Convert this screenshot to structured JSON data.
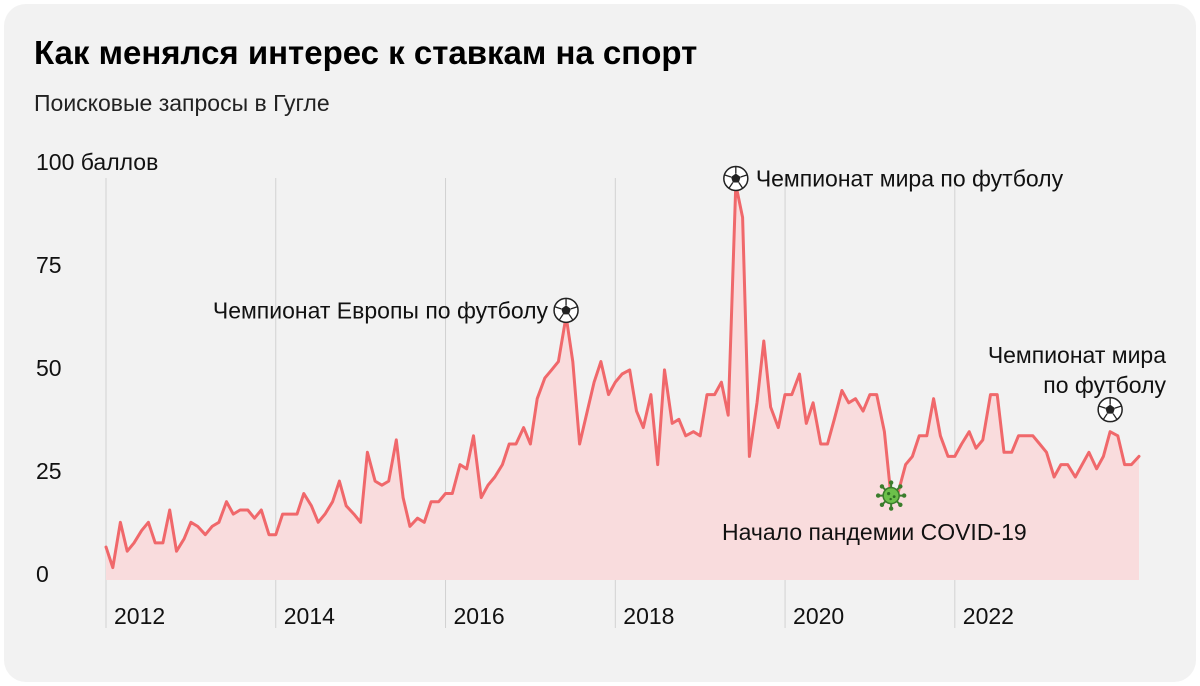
{
  "title": "Как менялся интерес к ставкам на спорт",
  "subtitle": "Поисковые запросы в Гугле",
  "chart_data": {
    "type": "area",
    "y_unit": "баллов",
    "ylim": [
      0,
      100
    ],
    "y_ticks": [
      {
        "value": 100,
        "label": "100 баллов"
      },
      {
        "value": 75,
        "label": "75"
      },
      {
        "value": 50,
        "label": "50"
      },
      {
        "value": 25,
        "label": "25"
      },
      {
        "value": 0,
        "label": "0"
      }
    ],
    "x_ticks": [
      {
        "value": 2012,
        "label": "2012"
      },
      {
        "value": 2014,
        "label": "2014"
      },
      {
        "value": 2016,
        "label": "2016"
      },
      {
        "value": 2018,
        "label": "2018"
      },
      {
        "value": 2020,
        "label": "2020"
      },
      {
        "value": 2022,
        "label": "2022"
      }
    ],
    "grid": "vertical lines at year ticks",
    "line_color": "#f0686b",
    "fill_color": "#f9dcdd",
    "series": [
      {
        "points": [
          [
            2012.0,
            8
          ],
          [
            2012.08,
            3
          ],
          [
            2012.17,
            14
          ],
          [
            2012.25,
            7
          ],
          [
            2012.33,
            9
          ],
          [
            2012.42,
            12
          ],
          [
            2012.5,
            14
          ],
          [
            2012.58,
            9
          ],
          [
            2012.67,
            9
          ],
          [
            2012.75,
            17
          ],
          [
            2012.83,
            7
          ],
          [
            2012.92,
            10
          ],
          [
            2013.0,
            14
          ],
          [
            2013.08,
            13
          ],
          [
            2013.17,
            11
          ],
          [
            2013.25,
            13
          ],
          [
            2013.33,
            14
          ],
          [
            2013.42,
            19
          ],
          [
            2013.5,
            16
          ],
          [
            2013.58,
            17
          ],
          [
            2013.67,
            17
          ],
          [
            2013.75,
            15
          ],
          [
            2013.83,
            17
          ],
          [
            2013.92,
            11
          ],
          [
            2014.0,
            11
          ],
          [
            2014.08,
            16
          ],
          [
            2014.17,
            16
          ],
          [
            2014.25,
            16
          ],
          [
            2014.33,
            21
          ],
          [
            2014.42,
            18
          ],
          [
            2014.5,
            14
          ],
          [
            2014.58,
            16
          ],
          [
            2014.67,
            19
          ],
          [
            2014.75,
            24
          ],
          [
            2014.83,
            18
          ],
          [
            2014.92,
            16
          ],
          [
            2015.0,
            14
          ],
          [
            2015.08,
            31
          ],
          [
            2015.17,
            24
          ],
          [
            2015.25,
            23
          ],
          [
            2015.33,
            24
          ],
          [
            2015.42,
            34
          ],
          [
            2015.5,
            20
          ],
          [
            2015.58,
            13
          ],
          [
            2015.67,
            15
          ],
          [
            2015.75,
            14
          ],
          [
            2015.83,
            19
          ],
          [
            2015.92,
            19
          ],
          [
            2016.0,
            21
          ],
          [
            2016.08,
            21
          ],
          [
            2016.17,
            28
          ],
          [
            2016.25,
            27
          ],
          [
            2016.33,
            35
          ],
          [
            2016.42,
            20
          ],
          [
            2016.5,
            23
          ],
          [
            2016.58,
            25
          ],
          [
            2016.67,
            28
          ],
          [
            2016.75,
            33
          ],
          [
            2016.83,
            33
          ],
          [
            2016.92,
            37
          ],
          [
            2017.0,
            33
          ],
          [
            2017.08,
            44
          ],
          [
            2017.17,
            49
          ],
          [
            2017.25,
            51
          ],
          [
            2017.33,
            53
          ],
          [
            2017.42,
            64
          ],
          [
            2017.5,
            53
          ],
          [
            2017.58,
            33
          ],
          [
            2017.67,
            41
          ],
          [
            2017.75,
            48
          ],
          [
            2017.83,
            53
          ],
          [
            2017.92,
            45
          ],
          [
            2018.0,
            48
          ],
          [
            2018.08,
            50
          ],
          [
            2018.17,
            51
          ],
          [
            2018.25,
            41
          ],
          [
            2018.33,
            37
          ],
          [
            2018.42,
            45
          ],
          [
            2018.5,
            28
          ],
          [
            2018.58,
            51
          ],
          [
            2018.67,
            38
          ],
          [
            2018.75,
            39
          ],
          [
            2018.83,
            35
          ],
          [
            2018.92,
            36
          ],
          [
            2019.0,
            35
          ],
          [
            2019.08,
            45
          ],
          [
            2019.17,
            45
          ],
          [
            2019.25,
            48
          ],
          [
            2019.33,
            40
          ],
          [
            2019.42,
            96
          ],
          [
            2019.5,
            88
          ],
          [
            2019.58,
            30
          ],
          [
            2019.67,
            43
          ],
          [
            2019.75,
            58
          ],
          [
            2019.83,
            42
          ],
          [
            2019.92,
            37
          ],
          [
            2020.0,
            45
          ],
          [
            2020.08,
            45
          ],
          [
            2020.17,
            50
          ],
          [
            2020.25,
            38
          ],
          [
            2020.33,
            43
          ],
          [
            2020.42,
            33
          ],
          [
            2020.5,
            33
          ],
          [
            2020.58,
            39
          ],
          [
            2020.67,
            46
          ],
          [
            2020.75,
            43
          ],
          [
            2020.83,
            44
          ],
          [
            2020.92,
            41
          ],
          [
            2021.0,
            45
          ],
          [
            2021.08,
            45
          ],
          [
            2021.17,
            36
          ],
          [
            2021.25,
            20
          ],
          [
            2021.33,
            21
          ],
          [
            2021.42,
            28
          ],
          [
            2021.5,
            30
          ],
          [
            2021.58,
            35
          ],
          [
            2021.67,
            35
          ],
          [
            2021.75,
            44
          ],
          [
            2021.83,
            35
          ],
          [
            2021.92,
            30
          ],
          [
            2022.0,
            30
          ],
          [
            2022.08,
            33
          ],
          [
            2022.17,
            36
          ],
          [
            2022.25,
            32
          ],
          [
            2022.33,
            34
          ],
          [
            2022.42,
            45
          ],
          [
            2022.5,
            45
          ],
          [
            2022.58,
            31
          ],
          [
            2022.67,
            31
          ],
          [
            2022.75,
            35
          ],
          [
            2022.83,
            35
          ],
          [
            2022.92,
            35
          ],
          [
            2023.0,
            33
          ],
          [
            2023.08,
            31
          ],
          [
            2023.17,
            25
          ],
          [
            2023.25,
            28
          ],
          [
            2023.33,
            28
          ],
          [
            2023.42,
            25
          ],
          [
            2023.5,
            28
          ],
          [
            2023.58,
            31
          ],
          [
            2023.67,
            27
          ],
          [
            2023.75,
            30
          ],
          [
            2023.83,
            36
          ],
          [
            2023.92,
            35
          ],
          [
            2024.0,
            28
          ],
          [
            2024.08,
            28
          ],
          [
            2024.17,
            30
          ]
        ]
      }
    ],
    "annotations": [
      {
        "text": "Чемпионат Европы по футболу",
        "icon": "soccer-ball-icon",
        "x": 2017.42,
        "y": 64
      },
      {
        "text": "Чемпионат мира по футболу",
        "icon": "soccer-ball-icon",
        "x": 2019.42,
        "y": 96
      },
      {
        "text": "Начало пандемии COVID-19",
        "icon": "virus-icon",
        "x": 2021.25,
        "y": 20
      },
      {
        "text": "Чемпионат мира по футболу",
        "icon": "soccer-ball-icon",
        "x": 2023.83,
        "y": 36
      }
    ]
  }
}
